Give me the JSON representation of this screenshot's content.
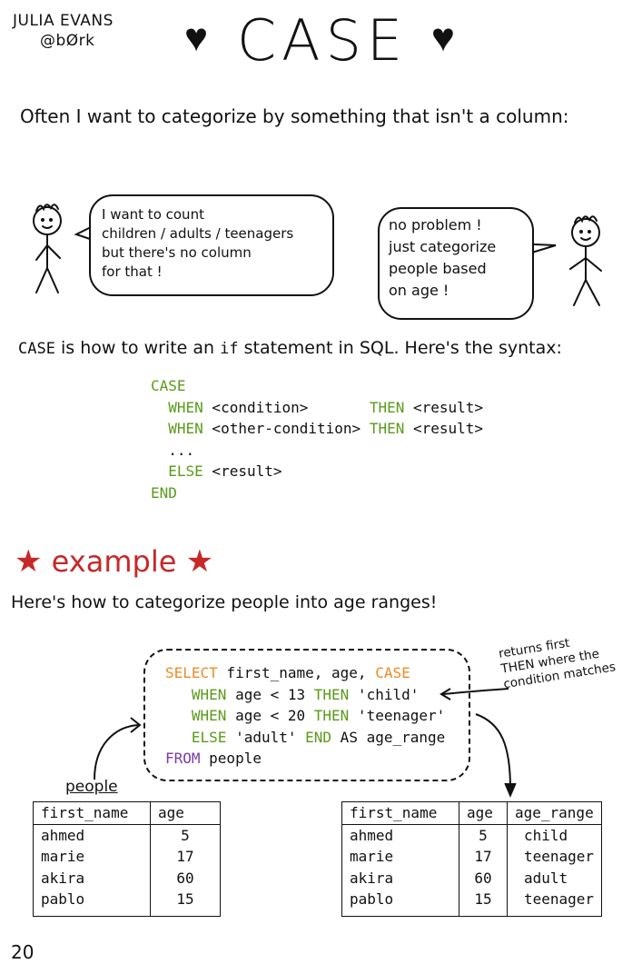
{
  "header": {
    "author": "JULIA EVANS",
    "handle": "@bØrk",
    "title": "CASE",
    "heart": "♥"
  },
  "intro": "Often I want to categorize by something that isn't a column:",
  "bubbles": {
    "left": [
      "I want to count",
      "children / adults / teenagers",
      "but there's no column",
      "for that !"
    ],
    "right": [
      "no problem !",
      "just categorize",
      "people based",
      "on age !"
    ]
  },
  "case_line": {
    "keyword": "CASE",
    "part1": " is how to write an ",
    "if": "if",
    "part2": " statement in SQL. Here's the syntax:"
  },
  "syntax": {
    "case": "CASE",
    "when": "WHEN",
    "then": "THEN",
    "else": "ELSE",
    "end": "END",
    "cond1": " <condition>       ",
    "cond2": " <other-condition> ",
    "result": " <result>",
    "dots": "..."
  },
  "example": {
    "heading": "example",
    "star": "★",
    "intro": "Here's how to categorize people into age ranges!"
  },
  "query": {
    "select": "SELECT",
    "fields": " first_name, age, ",
    "case": "CASE",
    "when": "WHEN",
    "then": "THEN",
    "else": "ELSE",
    "end": "END",
    "from": "FROM",
    "cond1": " age < 13 ",
    "val1": " 'child'",
    "cond2": " age < 20 ",
    "val2": " 'teenager'",
    "else_val": " 'adult' ",
    "alias": " AS age_range",
    "table": " people"
  },
  "note": [
    "returns first",
    "THEN where the",
    "condition matches"
  ],
  "people_label": "people",
  "table_left": {
    "columns": [
      "first_name",
      "age"
    ],
    "rows": [
      [
        "ahmed",
        "5"
      ],
      [
        "marie",
        "17"
      ],
      [
        "akira",
        "60"
      ],
      [
        "pablo",
        "15"
      ]
    ]
  },
  "table_right": {
    "columns": [
      "first_name",
      "age",
      "age_range"
    ],
    "rows": [
      [
        "ahmed",
        "5",
        "child"
      ],
      [
        "marie",
        "17",
        "teenager"
      ],
      [
        "akira",
        "60",
        "adult"
      ],
      [
        "pablo",
        "15",
        "teenager"
      ]
    ]
  },
  "page_number": "20"
}
